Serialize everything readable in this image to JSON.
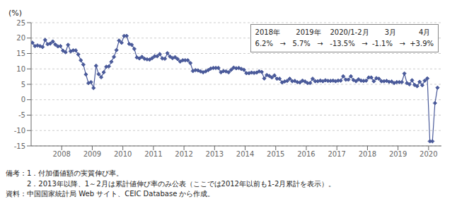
{
  "chart_data": {
    "type": "line",
    "ylabel": "(%)",
    "x": [
      2007.041667,
      2007.125,
      2007.208333,
      2007.291667,
      2007.375,
      2007.458333,
      2007.541667,
      2007.625,
      2007.708333,
      2007.791667,
      2007.875,
      2007.958333,
      2008.041667,
      2008.125,
      2008.208333,
      2008.291667,
      2008.375,
      2008.458333,
      2008.541667,
      2008.625,
      2008.708333,
      2008.791667,
      2008.875,
      2008.958333,
      2009.041667,
      2009.125,
      2009.208333,
      2009.291667,
      2009.375,
      2009.458333,
      2009.541667,
      2009.625,
      2009.708333,
      2009.791667,
      2009.875,
      2009.958333,
      2010.041667,
      2010.125,
      2010.208333,
      2010.291667,
      2010.375,
      2010.458333,
      2010.541667,
      2010.625,
      2010.708333,
      2010.791667,
      2010.875,
      2010.958333,
      2011.041667,
      2011.125,
      2011.208333,
      2011.291667,
      2011.375,
      2011.458333,
      2011.541667,
      2011.625,
      2011.708333,
      2011.791667,
      2011.875,
      2011.958333,
      2012.041667,
      2012.125,
      2012.208333,
      2012.291667,
      2012.375,
      2012.458333,
      2012.541667,
      2012.625,
      2012.708333,
      2012.791667,
      2012.875,
      2012.958333,
      2013.041667,
      2013.125,
      2013.208333,
      2013.291667,
      2013.375,
      2013.458333,
      2013.541667,
      2013.625,
      2013.708333,
      2013.791667,
      2013.875,
      2013.958333,
      2014.041667,
      2014.125,
      2014.208333,
      2014.291667,
      2014.375,
      2014.458333,
      2014.541667,
      2014.625,
      2014.708333,
      2014.791667,
      2014.875,
      2014.958333,
      2015.041667,
      2015.125,
      2015.208333,
      2015.291667,
      2015.375,
      2015.458333,
      2015.541667,
      2015.625,
      2015.708333,
      2015.791667,
      2015.875,
      2015.958333,
      2016.041667,
      2016.125,
      2016.208333,
      2016.291667,
      2016.375,
      2016.458333,
      2016.541667,
      2016.625,
      2016.708333,
      2016.791667,
      2016.875,
      2016.958333,
      2017.041667,
      2017.125,
      2017.208333,
      2017.291667,
      2017.375,
      2017.458333,
      2017.541667,
      2017.625,
      2017.708333,
      2017.791667,
      2017.875,
      2017.958333,
      2018.041667,
      2018.125,
      2018.208333,
      2018.291667,
      2018.375,
      2018.458333,
      2018.541667,
      2018.625,
      2018.708333,
      2018.791667,
      2018.875,
      2018.958333,
      2019.041667,
      2019.125,
      2019.208333,
      2019.291667,
      2019.375,
      2019.458333,
      2019.541667,
      2019.625,
      2019.708333,
      2019.791667,
      2019.875,
      2019.958333,
      2020.041667,
      2020.125,
      2020.208333,
      2020.291667
    ],
    "values": [
      18.5,
      17.4,
      17.6,
      17.4,
      17.1,
      19.4,
      18.0,
      18.2,
      18.9,
      17.9,
      17.3,
      17.4,
      15.9,
      15.4,
      17.8,
      15.7,
      16.0,
      16.0,
      14.7,
      12.8,
      11.4,
      8.2,
      5.4,
      5.7,
      3.8,
      11.0,
      8.3,
      7.3,
      8.9,
      10.7,
      10.8,
      12.3,
      13.9,
      16.1,
      19.2,
      18.5,
      20.7,
      20.7,
      18.1,
      17.8,
      16.5,
      13.7,
      13.4,
      13.9,
      13.3,
      13.1,
      13.0,
      13.5,
      14.1,
      14.1,
      14.8,
      13.4,
      13.3,
      15.1,
      14.0,
      13.5,
      13.8,
      13.2,
      12.4,
      12.8,
      12.8,
      12.8,
      11.9,
      9.3,
      9.6,
      9.5,
      9.2,
      8.9,
      9.2,
      9.6,
      10.1,
      10.3,
      10.3,
      10.3,
      8.9,
      9.3,
      9.2,
      8.9,
      9.7,
      10.4,
      10.2,
      10.3,
      10.0,
      9.7,
      8.6,
      8.6,
      8.8,
      8.7,
      8.8,
      9.2,
      9.0,
      6.9,
      8.0,
      7.7,
      7.2,
      7.9,
      6.8,
      6.8,
      5.6,
      5.9,
      6.1,
      6.8,
      6.0,
      6.1,
      5.7,
      5.6,
      6.2,
      5.9,
      5.4,
      5.4,
      6.8,
      6.0,
      6.0,
      6.2,
      6.0,
      6.3,
      6.1,
      6.1,
      6.2,
      6.0,
      6.2,
      6.2,
      7.6,
      6.5,
      6.5,
      7.6,
      6.4,
      6.0,
      6.6,
      6.2,
      6.1,
      6.2,
      7.2,
      7.2,
      6.0,
      7.0,
      6.8,
      6.0,
      6.0,
      6.1,
      5.8,
      5.9,
      5.4,
      5.7,
      5.7,
      5.7,
      8.5,
      5.4,
      5.0,
      6.3,
      4.8,
      4.4,
      5.8,
      4.7,
      6.2,
      6.9,
      -13.5,
      -13.5,
      -1.1,
      3.9
    ],
    "color": "#4a5a9a",
    "marker": "diamond",
    "xlim": [
      2007.0,
      2020.42
    ],
    "xticks": [
      2008,
      2009,
      2010,
      2011,
      2012,
      2013,
      2014,
      2015,
      2016,
      2017,
      2018,
      2019,
      2020
    ],
    "ylim": [
      -15,
      25
    ],
    "yticks": [
      -15,
      -10,
      -5,
      0,
      5,
      10,
      15,
      20,
      25
    ],
    "grid": true,
    "annotations": [
      "2018年       2019年    2020/1-2月       3月          4月",
      "6.2%   →   5.7%   →   -13.5%   →  -1.1%   →  +3.9%"
    ],
    "notes": [
      "備考：1．付加価値額の実質伸び率。",
      "　　　2．2013年以降、1～2月は累計値伸び率のみ公表（ここでは2012年以前も1-2月累計を表示）。",
      "資料：中国国家統計局 Web サイト、CEIC Database から作成。"
    ]
  }
}
